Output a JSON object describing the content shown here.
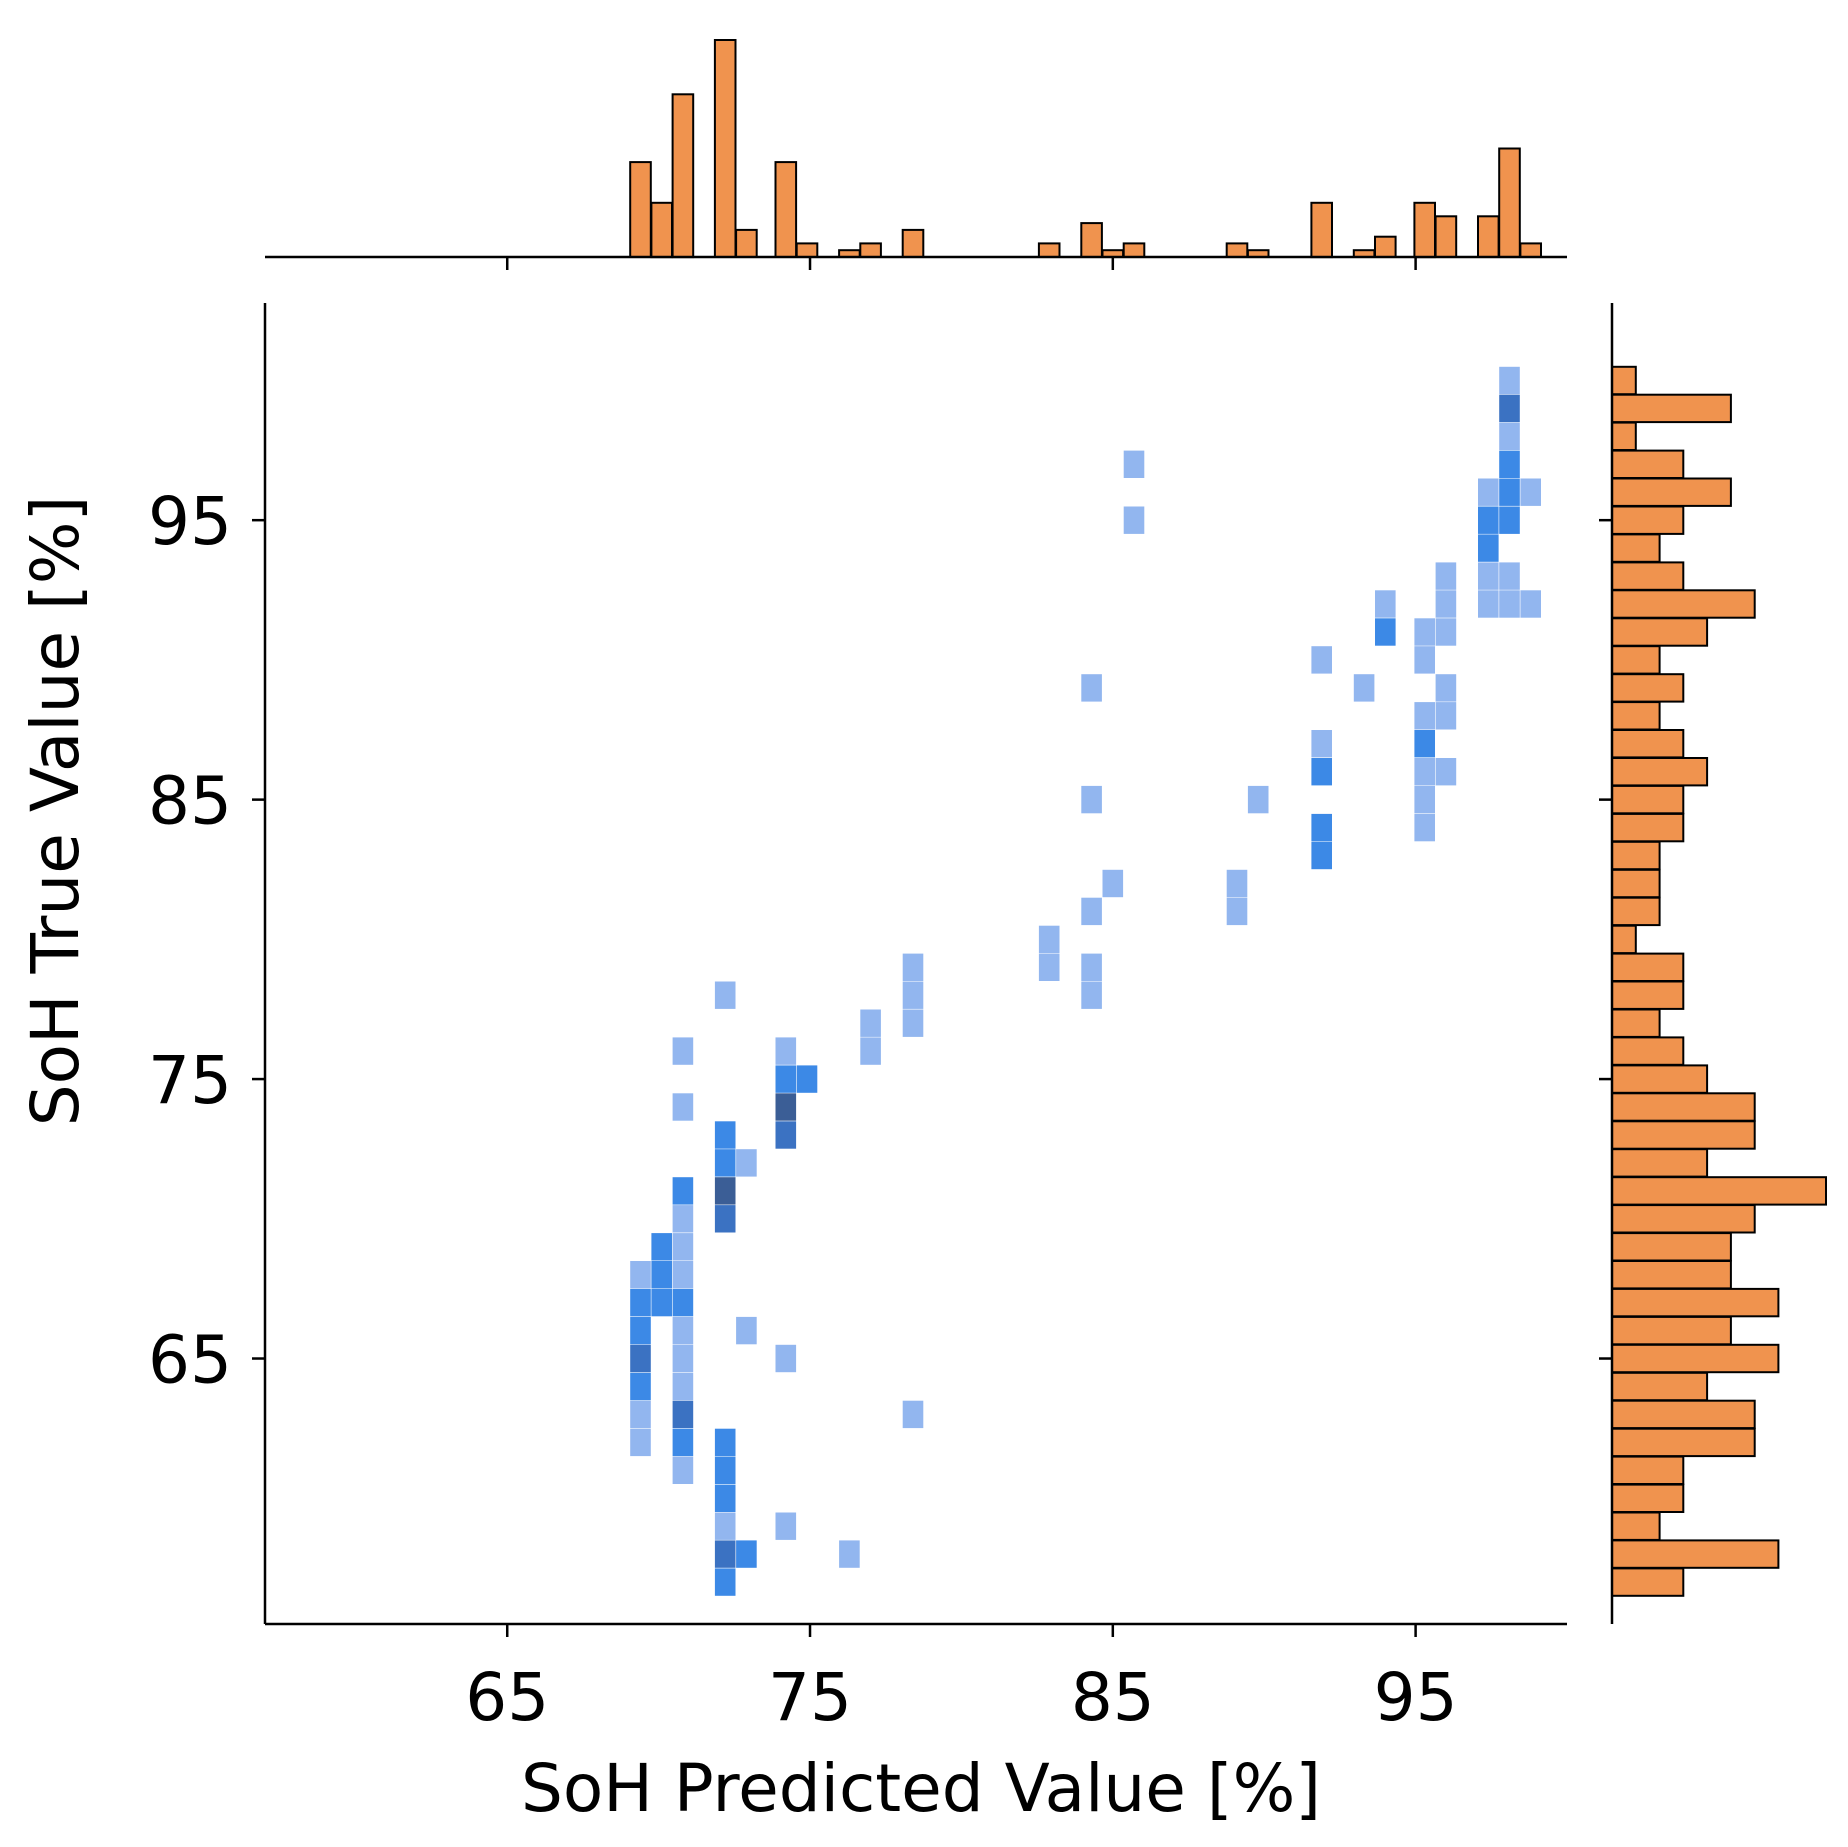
{
  "chart_data": {
    "type": "heatmap",
    "xlabel": "SoH Predicted Value [%]",
    "ylabel": "SoH True Value [%]",
    "xlim": [
      57,
      100
    ],
    "ylim": [
      55.5,
      102.7
    ],
    "x_ticks": [
      "65",
      "75",
      "85",
      "95"
    ],
    "y_ticks": [
      "65",
      "75",
      "85",
      "95"
    ],
    "grid": false,
    "bin_width_x": 0.68,
    "bin_height_y": 0.98,
    "colors": {
      "light": "#92B6EF",
      "mid": "#3C89E6",
      "dark": "#3B5E96",
      "hist_fill": "#F0934E",
      "hist_edge": "#000000"
    },
    "joint_cells": [
      {
        "x": 69.4,
        "y": 68.0,
        "level": 1
      },
      {
        "x": 69.4,
        "y": 67.0,
        "level": 2
      },
      {
        "x": 69.4,
        "y": 66.0,
        "level": 2
      },
      {
        "x": 69.4,
        "y": 65.0,
        "level": 3
      },
      {
        "x": 69.4,
        "y": 64.0,
        "level": 2
      },
      {
        "x": 69.4,
        "y": 63.0,
        "level": 1
      },
      {
        "x": 69.4,
        "y": 62.0,
        "level": 1
      },
      {
        "x": 70.1,
        "y": 69.0,
        "level": 2
      },
      {
        "x": 70.1,
        "y": 68.0,
        "level": 2
      },
      {
        "x": 70.1,
        "y": 67.0,
        "level": 2
      },
      {
        "x": 70.8,
        "y": 76.0,
        "level": 1
      },
      {
        "x": 70.8,
        "y": 74.0,
        "level": 1
      },
      {
        "x": 70.8,
        "y": 71.0,
        "level": 2
      },
      {
        "x": 70.8,
        "y": 70.0,
        "level": 1
      },
      {
        "x": 70.8,
        "y": 69.0,
        "level": 1
      },
      {
        "x": 70.8,
        "y": 68.0,
        "level": 1
      },
      {
        "x": 70.8,
        "y": 67.0,
        "level": 2
      },
      {
        "x": 70.8,
        "y": 66.0,
        "level": 1
      },
      {
        "x": 70.8,
        "y": 65.0,
        "level": 1
      },
      {
        "x": 70.8,
        "y": 64.0,
        "level": 1
      },
      {
        "x": 70.8,
        "y": 63.0,
        "level": 3
      },
      {
        "x": 70.8,
        "y": 62.0,
        "level": 2
      },
      {
        "x": 70.8,
        "y": 61.0,
        "level": 1
      },
      {
        "x": 72.2,
        "y": 78.0,
        "level": 1
      },
      {
        "x": 72.2,
        "y": 73.0,
        "level": 2
      },
      {
        "x": 72.2,
        "y": 72.0,
        "level": 2
      },
      {
        "x": 72.2,
        "y": 71.0,
        "level": 4
      },
      {
        "x": 72.2,
        "y": 70.0,
        "level": 3
      },
      {
        "x": 72.2,
        "y": 62.0,
        "level": 2
      },
      {
        "x": 72.2,
        "y": 61.0,
        "level": 2
      },
      {
        "x": 72.2,
        "y": 60.0,
        "level": 2
      },
      {
        "x": 72.2,
        "y": 59.0,
        "level": 1
      },
      {
        "x": 72.2,
        "y": 58.0,
        "level": 3
      },
      {
        "x": 72.2,
        "y": 57.0,
        "level": 2
      },
      {
        "x": 72.9,
        "y": 72.0,
        "level": 1
      },
      {
        "x": 72.9,
        "y": 66.0,
        "level": 1
      },
      {
        "x": 72.9,
        "y": 58.0,
        "level": 2
      },
      {
        "x": 74.2,
        "y": 76.0,
        "level": 1
      },
      {
        "x": 74.2,
        "y": 75.0,
        "level": 2
      },
      {
        "x": 74.2,
        "y": 74.0,
        "level": 4
      },
      {
        "x": 74.2,
        "y": 73.0,
        "level": 3
      },
      {
        "x": 74.2,
        "y": 65.0,
        "level": 1
      },
      {
        "x": 74.2,
        "y": 59.0,
        "level": 1
      },
      {
        "x": 74.9,
        "y": 75.0,
        "level": 2
      },
      {
        "x": 76.3,
        "y": 58.0,
        "level": 1
      },
      {
        "x": 77.0,
        "y": 77.0,
        "level": 1
      },
      {
        "x": 77.0,
        "y": 76.0,
        "level": 1
      },
      {
        "x": 78.4,
        "y": 79.0,
        "level": 1
      },
      {
        "x": 78.4,
        "y": 78.0,
        "level": 1
      },
      {
        "x": 78.4,
        "y": 77.0,
        "level": 1
      },
      {
        "x": 78.4,
        "y": 63.0,
        "level": 1
      },
      {
        "x": 82.9,
        "y": 80.0,
        "level": 1
      },
      {
        "x": 82.9,
        "y": 79.0,
        "level": 1
      },
      {
        "x": 84.3,
        "y": 89.0,
        "level": 1
      },
      {
        "x": 84.3,
        "y": 85.0,
        "level": 1
      },
      {
        "x": 84.3,
        "y": 81.0,
        "level": 1
      },
      {
        "x": 84.3,
        "y": 79.0,
        "level": 1
      },
      {
        "x": 84.3,
        "y": 78.0,
        "level": 1
      },
      {
        "x": 85.0,
        "y": 82.0,
        "level": 1
      },
      {
        "x": 85.7,
        "y": 97.0,
        "level": 1
      },
      {
        "x": 85.7,
        "y": 95.0,
        "level": 1
      },
      {
        "x": 89.1,
        "y": 82.0,
        "level": 1
      },
      {
        "x": 89.1,
        "y": 81.0,
        "level": 1
      },
      {
        "x": 89.8,
        "y": 85.0,
        "level": 1
      },
      {
        "x": 91.9,
        "y": 90.0,
        "level": 1
      },
      {
        "x": 91.9,
        "y": 87.0,
        "level": 1
      },
      {
        "x": 91.9,
        "y": 86.0,
        "level": 2
      },
      {
        "x": 91.9,
        "y": 84.0,
        "level": 2
      },
      {
        "x": 91.9,
        "y": 83.0,
        "level": 2
      },
      {
        "x": 93.3,
        "y": 89.0,
        "level": 1
      },
      {
        "x": 94.0,
        "y": 92.0,
        "level": 1
      },
      {
        "x": 94.0,
        "y": 91.0,
        "level": 2
      },
      {
        "x": 95.3,
        "y": 91.0,
        "level": 1
      },
      {
        "x": 95.3,
        "y": 90.0,
        "level": 1
      },
      {
        "x": 95.3,
        "y": 88.0,
        "level": 1
      },
      {
        "x": 95.3,
        "y": 87.0,
        "level": 2
      },
      {
        "x": 95.3,
        "y": 86.0,
        "level": 1
      },
      {
        "x": 95.3,
        "y": 85.0,
        "level": 1
      },
      {
        "x": 95.3,
        "y": 84.0,
        "level": 1
      },
      {
        "x": 96.0,
        "y": 93.0,
        "level": 1
      },
      {
        "x": 96.0,
        "y": 92.0,
        "level": 1
      },
      {
        "x": 96.0,
        "y": 91.0,
        "level": 1
      },
      {
        "x": 96.0,
        "y": 89.0,
        "level": 1
      },
      {
        "x": 96.0,
        "y": 88.0,
        "level": 1
      },
      {
        "x": 96.0,
        "y": 86.0,
        "level": 1
      },
      {
        "x": 97.4,
        "y": 96.0,
        "level": 1
      },
      {
        "x": 97.4,
        "y": 95.0,
        "level": 2
      },
      {
        "x": 97.4,
        "y": 94.0,
        "level": 2
      },
      {
        "x": 97.4,
        "y": 93.0,
        "level": 1
      },
      {
        "x": 97.4,
        "y": 92.0,
        "level": 1
      },
      {
        "x": 98.1,
        "y": 100.0,
        "level": 1
      },
      {
        "x": 98.1,
        "y": 99.0,
        "level": 3
      },
      {
        "x": 98.1,
        "y": 98.0,
        "level": 1
      },
      {
        "x": 98.1,
        "y": 97.0,
        "level": 2
      },
      {
        "x": 98.1,
        "y": 96.0,
        "level": 2
      },
      {
        "x": 98.1,
        "y": 95.0,
        "level": 2
      },
      {
        "x": 98.1,
        "y": 93.0,
        "level": 1
      },
      {
        "x": 98.1,
        "y": 92.0,
        "level": 1
      },
      {
        "x": 98.8,
        "y": 96.0,
        "level": 1
      },
      {
        "x": 98.8,
        "y": 92.0,
        "level": 1
      }
    ],
    "marginal_x": {
      "bins": [
        69.4,
        70.1,
        70.8,
        72.2,
        72.9,
        74.2,
        74.9,
        76.3,
        77.0,
        78.4,
        82.9,
        84.3,
        85.0,
        85.7,
        89.1,
        89.8,
        91.9,
        93.3,
        94.0,
        95.3,
        96.0,
        97.4,
        98.1,
        98.8
      ],
      "counts": [
        7,
        4,
        12,
        16,
        2,
        7,
        1,
        0.5,
        1,
        2,
        1,
        2.5,
        0.5,
        1,
        1,
        0.5,
        4,
        0.5,
        1.5,
        4,
        3,
        3,
        8,
        1
      ]
    },
    "marginal_y": {
      "bins": [
        100.0,
        99.0,
        98.0,
        97.0,
        96.0,
        95.0,
        94.0,
        93.0,
        92.0,
        91.0,
        90.0,
        89.0,
        88.0,
        87.0,
        86.0,
        85.0,
        84.0,
        83.0,
        82.0,
        81.0,
        80.0,
        79.0,
        78.0,
        77.0,
        76.0,
        75.0,
        74.0,
        73.0,
        72.0,
        71.0,
        70.0,
        69.0,
        68.0,
        67.0,
        66.0,
        65.0,
        64.0,
        63.0,
        62.0,
        61.0,
        60.0,
        59.0,
        58.0,
        57.0
      ],
      "counts": [
        1,
        5,
        1,
        3,
        5,
        3,
        2,
        3,
        6,
        4,
        2,
        3,
        2,
        3,
        4,
        3,
        3,
        2,
        2,
        2,
        1,
        3,
        3,
        2,
        3,
        4,
        6,
        6,
        4,
        9,
        6,
        5,
        5,
        7,
        5,
        7,
        4,
        6,
        6,
        3,
        3,
        2,
        7,
        3
      ]
    }
  }
}
